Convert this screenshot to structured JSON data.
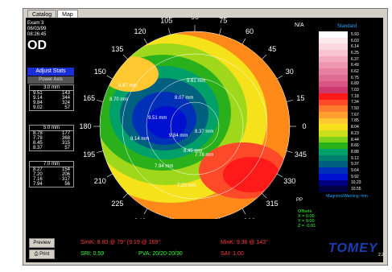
{
  "tabs": [
    "Catalog",
    "Map"
  ],
  "exam": {
    "title": "Exam 3",
    "date": "06/03/99",
    "time": "08:26:45",
    "eye": "OD"
  },
  "adjust_label": "Adjust Stats",
  "col_header": "Power Axis",
  "sections": [
    {
      "title": "3.0 mm",
      "rows": [
        [
          "9.51",
          "143"
        ],
        [
          "9.14",
          "344"
        ],
        [
          "9.84",
          "324"
        ],
        [
          "9.02",
          "57"
        ]
      ]
    },
    {
      "title": "5.0 mm",
      "rows": [
        [
          "8.78",
          "177"
        ],
        [
          "7.78",
          "368"
        ],
        [
          "8.45",
          "315"
        ],
        [
          "8.37",
          "57"
        ]
      ]
    },
    {
      "title": "7.0 mm",
      "rows": [
        [
          "8.27",
          "154"
        ],
        [
          "7.20",
          "206"
        ],
        [
          "7.16",
          "317"
        ],
        [
          "7.94",
          "56"
        ]
      ]
    }
  ],
  "map": {
    "angle_labels": [
      "0",
      "15",
      "30",
      "45",
      "60",
      "75",
      "90",
      "105",
      "120",
      "135",
      "150",
      "165",
      "180",
      "195",
      "210",
      "225",
      "240",
      "255",
      "270",
      "285",
      "300",
      "315",
      "330",
      "345"
    ],
    "annotations": [
      "8.97 mm",
      "9.61 mm",
      "8.07 mm",
      "8.70 mm",
      "9.51 mm",
      "9.14 mm",
      "9.84 mm",
      "8.45 mm",
      "7.94 mm",
      "7.20 mm",
      "7.78 mm",
      "8.37 mm"
    ]
  },
  "na_label": "N/A",
  "legend": {
    "title": "Standard",
    "values": [
      "5.93",
      "6.03",
      "6.14",
      "6.25",
      "6.37",
      "6.49",
      "6.62",
      "6.75",
      "6.89",
      "7.03",
      "7.18",
      "7.34",
      "7.50",
      "7.67",
      "7.85",
      "8.04",
      "8.23",
      "8.44",
      "8.66",
      "8.88",
      "9.12",
      "9.37",
      "9.64",
      "9.92",
      "10.23",
      "10.55"
    ],
    "colors": [
      "#ffffff",
      "#fde8ee",
      "#fcd6e0",
      "#f8c3d2",
      "#f3a9c0",
      "#ee95b1",
      "#e77fa0",
      "#df6b92",
      "#d85484",
      "#cf3a6e",
      "#ff1a1a",
      "#ff4a2a",
      "#ff7a2a",
      "#ff9f30",
      "#ffc830",
      "#f5e21a",
      "#c9e01a",
      "#7ed21a",
      "#2ab01a",
      "#00a06a",
      "#007f6f",
      "#006080",
      "#0030b8",
      "#0010d0",
      "#000080",
      "#000040"
    ],
    "footer": "Magnons/Warning: mm"
  },
  "pp_label": "PP",
  "offsets": {
    "title": "Offsets",
    "x": "X = 0.05",
    "y": "Y = 0.00",
    "z": "Z = -0.01"
  },
  "buttons": {
    "preview": "Preview",
    "print": "Print"
  },
  "stats": {
    "simk": "SimK: 8.80 @ 79° (9.19 @ 169°",
    "mink": "MinK: 9.36 @ 143°",
    "sri": "SRI: 0.59",
    "pva": "PVA: 20/20-20/30",
    "sai": "SAI: 1.00"
  },
  "logo": "TOMEY",
  "version": "2.2",
  "colors": {
    "panel": "#000000",
    "header_blue": "#1c2fd6",
    "simk": "#ff3a3a",
    "sri": "#39ff39"
  }
}
